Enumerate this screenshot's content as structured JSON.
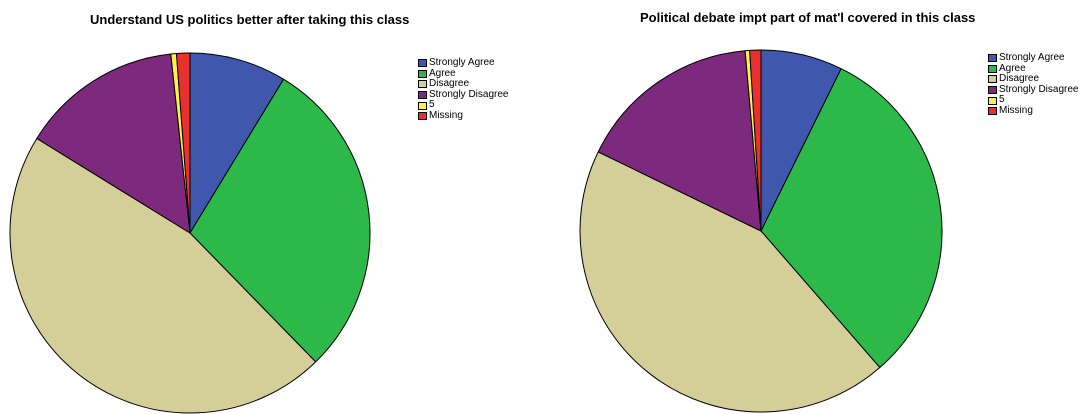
{
  "chart_data": [
    {
      "type": "pie",
      "title": "Understand US politics better after taking this class",
      "categories": [
        "Strongly Agree",
        "Agree",
        "Disagree",
        "Strongly Disagree",
        "5",
        "Missing"
      ],
      "values": [
        8.7,
        29.0,
        46.1,
        14.5,
        0.5,
        1.2
      ],
      "colors": [
        "#3f58ad",
        "#2db84a",
        "#d4cf98",
        "#7d2a7e",
        "#fff04a",
        "#e8302f"
      ],
      "legend_position": "top-right"
    },
    {
      "type": "pie",
      "title": "Political debate impt part of mat'l covered in this class",
      "categories": [
        "Strongly Agree",
        "Agree",
        "Disagree",
        "Strongly Disagree",
        "5",
        "Missing"
      ],
      "values": [
        7.3,
        31.3,
        43.6,
        16.4,
        0.4,
        1.0
      ],
      "colors": [
        "#3f58ad",
        "#2db84a",
        "#d4cf98",
        "#7d2a7e",
        "#fff04a",
        "#e8302f"
      ],
      "legend_position": "top-right"
    }
  ]
}
